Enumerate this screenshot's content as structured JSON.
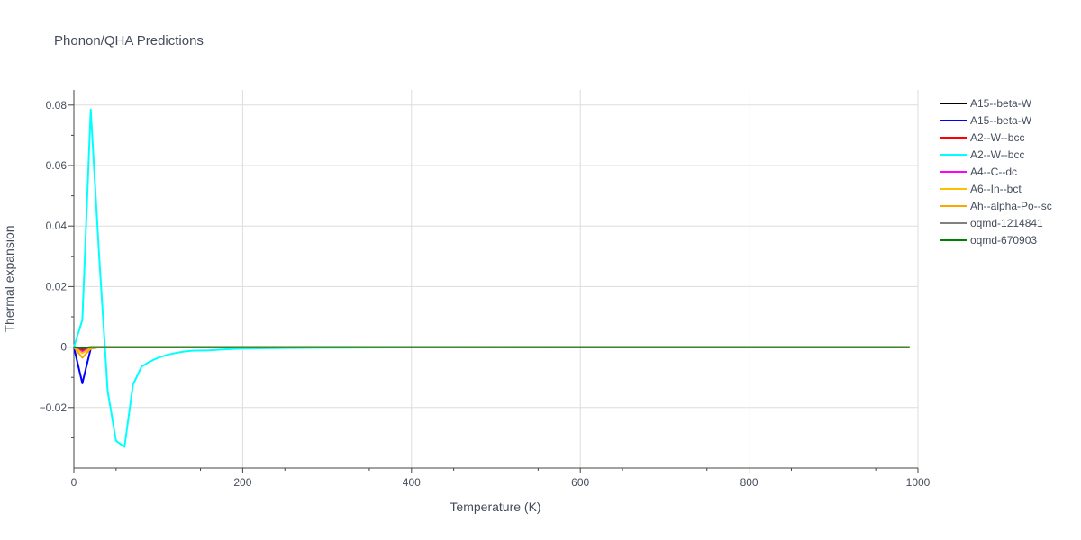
{
  "chart_data": {
    "type": "line",
    "title": "Phonon/QHA Predictions",
    "xlabel": "Temperature (K)",
    "ylabel": "Thermal expansion",
    "xlim": [
      0,
      1000
    ],
    "ylim": [
      -0.04,
      0.085
    ],
    "xticks": [
      0,
      200,
      400,
      600,
      800,
      1000
    ],
    "xtick_labels": [
      "0",
      "200",
      "400",
      "600",
      "800",
      "1000"
    ],
    "yticks": [
      -0.02,
      0,
      0.02,
      0.04,
      0.06,
      0.08
    ],
    "ytick_labels": [
      "−0.02",
      "0",
      "0.02",
      "0.04",
      "0.06",
      "0.08"
    ],
    "grid": true,
    "legend_position": "right",
    "series": [
      {
        "name": "A15--beta-W",
        "color": "#000000",
        "x": [
          0,
          10,
          20,
          30,
          50,
          100,
          200,
          400,
          600,
          800,
          990
        ],
        "y": [
          0,
          -0.0005,
          -0.0002,
          0,
          0,
          0,
          0,
          0,
          0,
          0,
          0
        ]
      },
      {
        "name": "A15--beta-W",
        "color": "#0000ff",
        "x": [
          0,
          10,
          20,
          30,
          50,
          100,
          200,
          400,
          600,
          800,
          990
        ],
        "y": [
          0,
          -0.012,
          -0.0005,
          0,
          0,
          0,
          0,
          0,
          0,
          0,
          0
        ]
      },
      {
        "name": "A2--W--bcc",
        "color": "#ff0000",
        "x": [
          0,
          10,
          20,
          30,
          50,
          100,
          200,
          400,
          600,
          800,
          990
        ],
        "y": [
          0,
          -0.001,
          -0.0003,
          0,
          0,
          0,
          0,
          0,
          0,
          0,
          0
        ]
      },
      {
        "name": "A2--W--bcc",
        "color": "#00ffff",
        "x": [
          0,
          10,
          20,
          30,
          40,
          50,
          60,
          70,
          80,
          90,
          100,
          110,
          120,
          130,
          140,
          160,
          180,
          200,
          250,
          300,
          400,
          600,
          800,
          990
        ],
        "y": [
          0,
          0.009,
          0.0785,
          0.03,
          -0.0145,
          -0.031,
          -0.033,
          -0.0125,
          -0.0065,
          -0.0048,
          -0.0035,
          -0.0026,
          -0.002,
          -0.0015,
          -0.0012,
          -0.0011,
          -0.0007,
          -0.0005,
          -0.0003,
          -0.0002,
          -0.0001,
          0,
          0,
          0
        ]
      },
      {
        "name": "A4--C--dc",
        "color": "#ff00ff",
        "x": [
          0,
          10,
          20,
          30,
          50,
          100,
          200,
          400,
          600,
          800,
          990
        ],
        "y": [
          0,
          -0.0015,
          -0.0002,
          0,
          0,
          0,
          0,
          0,
          0,
          0,
          0
        ]
      },
      {
        "name": "A6--In--bct",
        "color": "#ffbf00",
        "x": [
          0,
          10,
          20,
          30,
          50,
          100,
          200,
          400,
          600,
          800,
          990
        ],
        "y": [
          0,
          -0.002,
          -0.0003,
          0,
          0,
          0,
          0,
          0,
          0,
          0,
          0
        ]
      },
      {
        "name": "Ah--alpha-Po--sc",
        "color": "#ffa500",
        "x": [
          0,
          10,
          20,
          30,
          50,
          100,
          200,
          400,
          600,
          800,
          990
        ],
        "y": [
          0,
          -0.0035,
          -0.0005,
          0,
          0,
          0,
          0,
          0,
          0,
          0,
          0
        ]
      },
      {
        "name": "oqmd-1214841",
        "color": "#808080",
        "x": [
          0,
          10,
          20,
          30,
          50,
          100,
          200,
          400,
          600,
          800,
          990
        ],
        "y": [
          0,
          -0.0003,
          0,
          0,
          0,
          0,
          0,
          0,
          0,
          0,
          0
        ]
      },
      {
        "name": "oqmd-670903",
        "color": "#008000",
        "x": [
          0,
          10,
          20,
          30,
          50,
          100,
          200,
          400,
          600,
          800,
          990
        ],
        "y": [
          0,
          -0.0004,
          0,
          0,
          0,
          0,
          0,
          0,
          0,
          0,
          0
        ]
      }
    ]
  }
}
